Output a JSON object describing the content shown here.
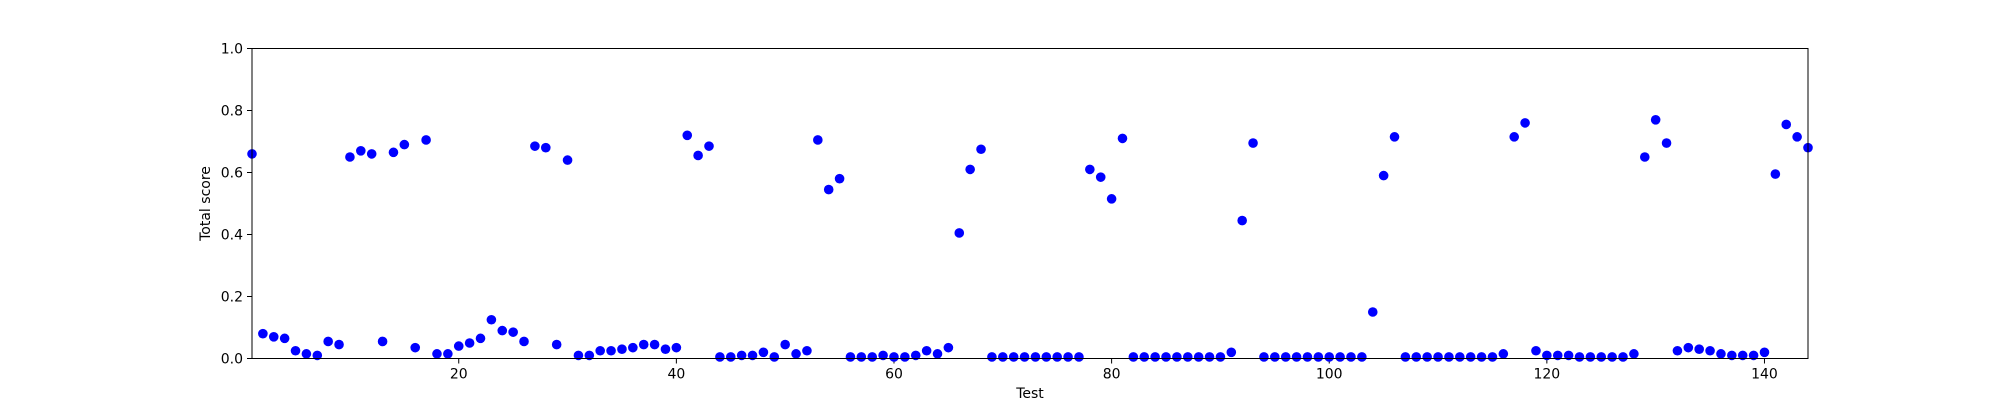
{
  "chart_data": {
    "type": "scatter",
    "xlabel": "Test",
    "ylabel": "Total score",
    "xlim": [
      1,
      144
    ],
    "ylim": [
      0,
      1.0
    ],
    "x_ticks": [
      20,
      40,
      60,
      80,
      100,
      120,
      140
    ],
    "x_tick_labels": [
      "20",
      "40",
      "60",
      "80",
      "100",
      "120",
      "140"
    ],
    "y_ticks": [
      0.0,
      0.2,
      0.4,
      0.6,
      0.8,
      1.0
    ],
    "y_tick_labels": [
      "0.0",
      "0.2",
      "0.4",
      "0.6",
      "0.8",
      "1.0"
    ],
    "grid": false,
    "marker_color": "#0000ff",
    "x": [
      1,
      2,
      3,
      4,
      5,
      6,
      7,
      8,
      9,
      10,
      11,
      12,
      13,
      14,
      15,
      16,
      17,
      18,
      19,
      20,
      21,
      22,
      23,
      24,
      25,
      26,
      27,
      28,
      29,
      30,
      31,
      32,
      33,
      34,
      35,
      36,
      37,
      38,
      39,
      40,
      41,
      42,
      43,
      44,
      45,
      46,
      47,
      48,
      49,
      50,
      51,
      52,
      53,
      54,
      55,
      56,
      57,
      58,
      59,
      60,
      61,
      62,
      63,
      64,
      65,
      66,
      67,
      68,
      69,
      70,
      71,
      72,
      73,
      74,
      75,
      76,
      77,
      78,
      79,
      80,
      81,
      82,
      83,
      84,
      85,
      86,
      87,
      88,
      89,
      90,
      91,
      92,
      93,
      94,
      95,
      96,
      97,
      98,
      99,
      100,
      101,
      102,
      103,
      104,
      105,
      106,
      107,
      108,
      109,
      110,
      111,
      112,
      113,
      114,
      115,
      116,
      117,
      118,
      119,
      120,
      121,
      122,
      123,
      124,
      125,
      126,
      127,
      128,
      129,
      130,
      131,
      132,
      133,
      134,
      135,
      136,
      137,
      138,
      139,
      140,
      141,
      142,
      143,
      144
    ],
    "y": [
      0.66,
      0.08,
      0.07,
      0.065,
      0.025,
      0.015,
      0.01,
      0.055,
      0.045,
      0.65,
      0.67,
      0.66,
      0.055,
      0.665,
      0.69,
      0.035,
      0.705,
      0.015,
      0.015,
      0.04,
      0.05,
      0.065,
      0.125,
      0.09,
      0.085,
      0.055,
      0.685,
      0.68,
      0.045,
      0.64,
      0.01,
      0.01,
      0.025,
      0.025,
      0.03,
      0.035,
      0.045,
      0.045,
      0.03,
      0.035,
      0.72,
      0.655,
      0.685,
      0.005,
      0.005,
      0.01,
      0.01,
      0.02,
      0.005,
      0.045,
      0.015,
      0.025,
      0.705,
      0.545,
      0.58,
      0.005,
      0.005,
      0.005,
      0.01,
      0.005,
      0.005,
      0.01,
      0.025,
      0.015,
      0.035,
      0.405,
      0.61,
      0.675,
      0.005,
      0.005,
      0.005,
      0.005,
      0.005,
      0.005,
      0.005,
      0.005,
      0.005,
      0.61,
      0.585,
      0.515,
      0.71,
      0.005,
      0.005,
      0.005,
      0.005,
      0.005,
      0.005,
      0.005,
      0.005,
      0.005,
      0.02,
      0.445,
      0.695,
      0.005,
      0.005,
      0.005,
      0.005,
      0.005,
      0.005,
      0.005,
      0.005,
      0.005,
      0.005,
      0.15,
      0.59,
      0.715,
      0.005,
      0.005,
      0.005,
      0.005,
      0.005,
      0.005,
      0.005,
      0.005,
      0.005,
      0.015,
      0.715,
      0.76,
      0.025,
      0.01,
      0.01,
      0.01,
      0.005,
      0.005,
      0.005,
      0.005,
      0.005,
      0.015,
      0.65,
      0.77,
      0.695,
      0.025,
      0.035,
      0.03,
      0.025,
      0.015,
      0.01,
      0.01,
      0.01,
      0.02,
      0.595,
      0.755,
      0.715,
      0.68
    ]
  }
}
